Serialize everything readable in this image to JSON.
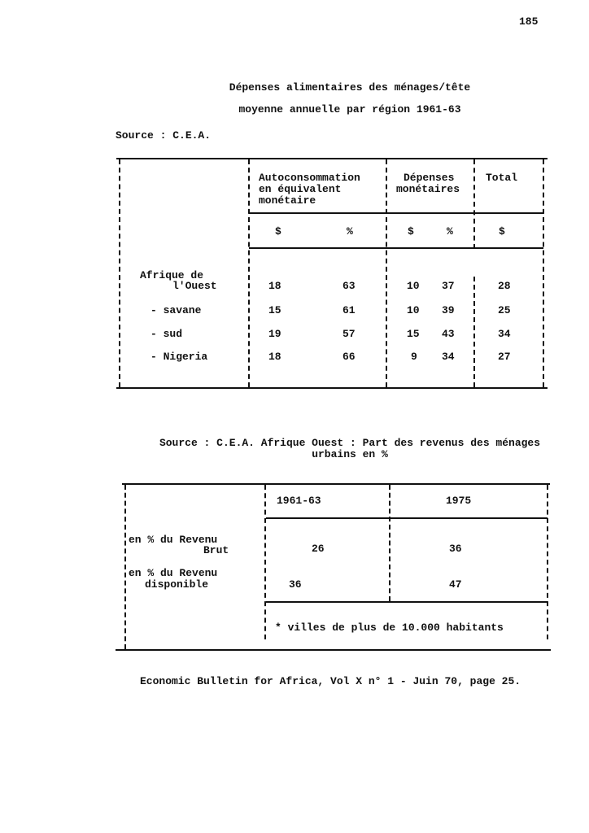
{
  "page_number": "185",
  "table1": {
    "title_line1": "Dépenses alimentaires des ménages/tête",
    "title_line2": "moyenne annuelle par région 1961-63",
    "source": "Source : C.E.A.",
    "headers": {
      "autoconsommation": [
        "Autoconsommation",
        "en équivalent",
        "monétaire"
      ],
      "depenses": [
        "Dépenses",
        "monétaires"
      ],
      "total": "Total"
    },
    "units": [
      "$",
      "%",
      "$",
      "%",
      "$"
    ],
    "rows": [
      {
        "label": [
          "Afrique de",
          "l'Ouest"
        ],
        "values": [
          "18",
          "63",
          "10",
          "37",
          "28"
        ]
      },
      {
        "label": [
          "- savane"
        ],
        "values": [
          "15",
          "61",
          "10",
          "39",
          "25"
        ]
      },
      {
        "label": [
          "- sud"
        ],
        "values": [
          "19",
          "57",
          "15",
          "43",
          "34"
        ]
      },
      {
        "label": [
          "- Nigeria"
        ],
        "values": [
          "18",
          "66",
          "9",
          "34",
          "27"
        ]
      }
    ]
  },
  "table2": {
    "caption_line1": "Source : C.E.A. Afrique Ouest : Part des revenus des ménages",
    "caption_line2": "urbains en %",
    "headers": [
      "1961-63",
      "1975"
    ],
    "rows": [
      {
        "label": [
          "en % du Revenu",
          "Brut"
        ],
        "values": [
          "26",
          "36"
        ]
      },
      {
        "label": [
          "en % du Revenu",
          "disponible"
        ],
        "values": [
          "36",
          "47"
        ]
      }
    ],
    "footnote": "* villes de plus de 10.000 habitants"
  },
  "citation": "Economic Bulletin for Africa, Vol X n° 1 - Juin 70, page 25."
}
